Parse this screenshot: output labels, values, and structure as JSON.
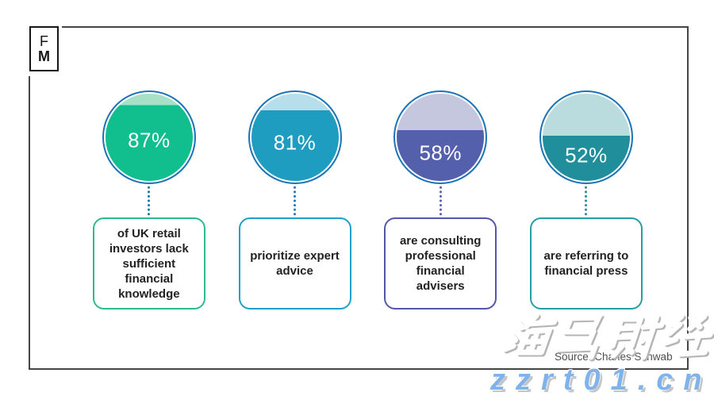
{
  "logo": {
    "line1": "F",
    "line2": "M"
  },
  "chart_data": {
    "type": "gauge",
    "title": "",
    "legend": "none",
    "gauges": [
      {
        "value": 87,
        "value_label": "87%",
        "description": "of UK retail\ninvestors lack\nsufficient\nfinancial\nknowledge",
        "fill": "#10BE8E",
        "fill_light": "#A8DFC7",
        "box_border": "#2ABB8F",
        "dot_color": "#0F7AA0"
      },
      {
        "value": 81,
        "value_label": "81%",
        "description": "prioritize expert\nadvice",
        "fill": "#1F9DC1",
        "fill_light": "#B7DEEB",
        "box_border": "#1FA0CB",
        "dot_color": "#1B78BE"
      },
      {
        "value": 58,
        "value_label": "58%",
        "description": "are consulting\nprofessional\nfinancial\nadvisers",
        "fill": "#5560AC",
        "fill_light": "#C5C7DE",
        "box_border": "#5457A7",
        "dot_color": "#5560AC"
      },
      {
        "value": 52,
        "value_label": "52%",
        "description": "are referring to\nfinancial press",
        "fill": "#218F9B",
        "fill_light": "#BBDCDE",
        "box_border": "#249FA4",
        "dot_color": "#1F8F9B"
      }
    ],
    "ring_color": "#1C73B6"
  },
  "source": {
    "text": "Source: Charles Schwab"
  },
  "watermark": {
    "cjk": "海马财经",
    "url": "zzrt01.cn",
    "url_color": "#80B3E9"
  }
}
